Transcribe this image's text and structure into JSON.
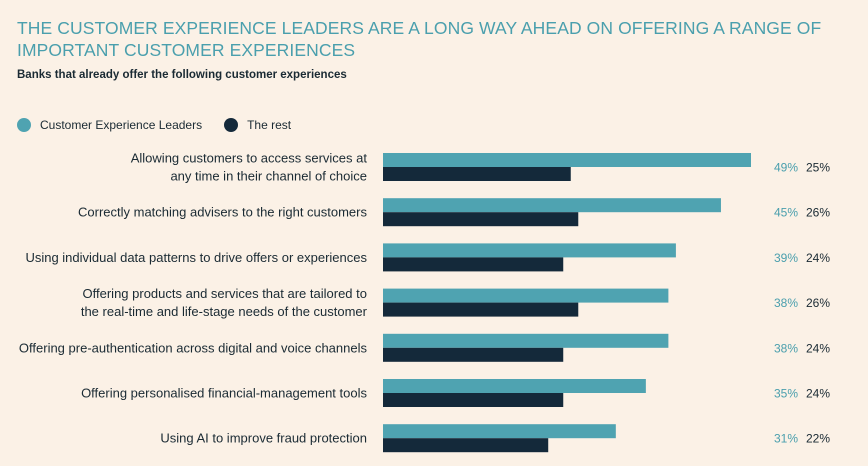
{
  "colors": {
    "leaders": "#4fa3b1",
    "rest": "#14293a",
    "leaders_text": "#4a9fad",
    "rest_text": "#1a2a33"
  },
  "chart_data": {
    "type": "bar",
    "orientation": "horizontal",
    "title": "THE CUSTOMER EXPERIENCE LEADERS ARE A LONG WAY AHEAD ON OFFERING A RANGE OF IMPORTANT CUSTOMER EXPERIENCES",
    "subtitle": "Banks that already offer the following customer experiences",
    "legend_position": "top-left",
    "xlim": [
      0,
      50
    ],
    "grid": false,
    "categories": [
      [
        "Allowing customers to access services at",
        "any time in their channel of choice"
      ],
      [
        "Correctly matching advisers to the right customers"
      ],
      [
        "Using individual data patterns to drive offers or experiences"
      ],
      [
        "Offering products and services that are tailored to",
        "the real-time and life-stage needs of the customer"
      ],
      [
        "Offering pre-authentication across digital and voice channels"
      ],
      [
        "Offering personalised financial-management tools"
      ],
      [
        "Using AI to improve fraud protection"
      ]
    ],
    "series": [
      {
        "name": "Customer Experience Leaders",
        "values": [
          49,
          45,
          39,
          38,
          38,
          35,
          31
        ],
        "labels": [
          "49%",
          "45%",
          "39%",
          "38%",
          "38%",
          "35%",
          "31%"
        ]
      },
      {
        "name": "The rest",
        "values": [
          25,
          26,
          24,
          26,
          24,
          24,
          22
        ],
        "labels": [
          "25%",
          "26%",
          "24%",
          "26%",
          "24%",
          "24%",
          "22%"
        ]
      }
    ]
  }
}
